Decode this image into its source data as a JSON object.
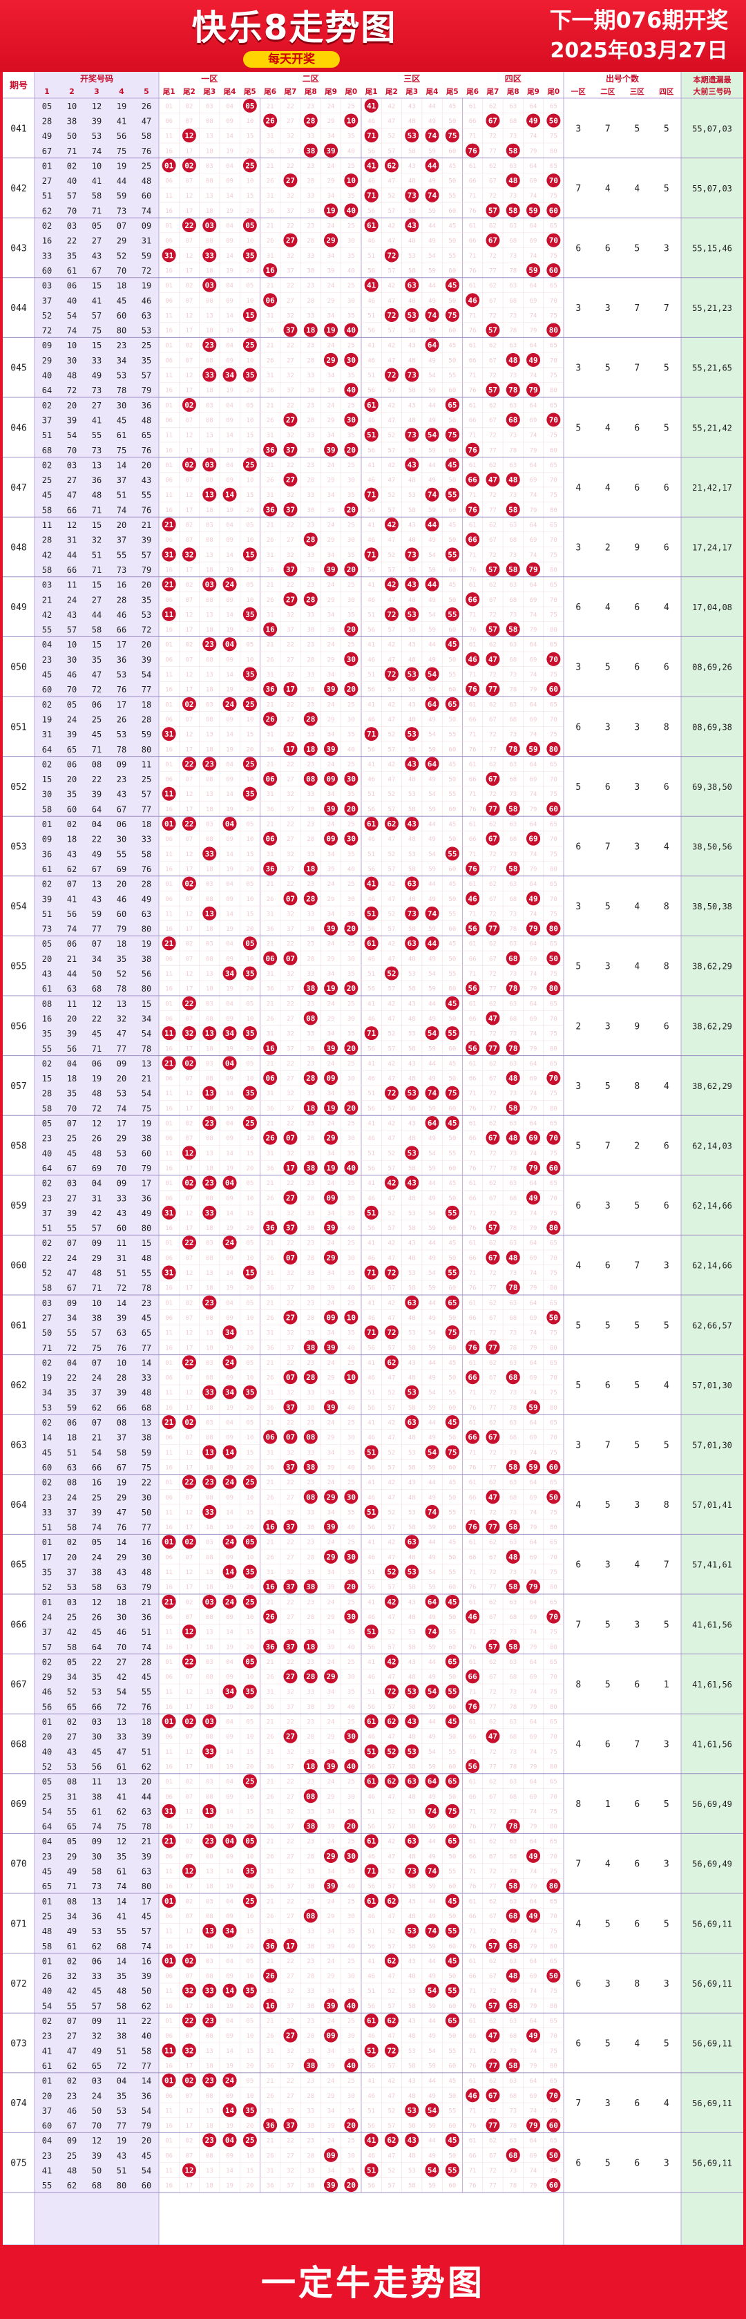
{
  "header": {
    "title": "快乐8走势图",
    "subtitle": "每天开奖",
    "next_issue": "下一期076期开奖",
    "next_date": "2025年03月27日"
  },
  "footer": {
    "brand": "一定牛走势图"
  },
  "colors": {
    "red": "#e8122a",
    "ball": "#c8102e",
    "left_bg": "#ece6fb",
    "right_bg": "#dcf3df"
  },
  "chart_data": {
    "type": "table",
    "columns": {
      "issue": "期号",
      "numbers_group": "开奖号码",
      "number_cols": [
        "1",
        "2",
        "3",
        "4",
        "5"
      ],
      "zones": [
        "一区",
        "二区",
        "三区",
        "四区"
      ],
      "tails": [
        "尾1",
        "尾2",
        "尾3",
        "尾4",
        "尾5",
        "尾6",
        "尾7",
        "尾8",
        "尾9",
        "尾0"
      ],
      "count_group": "出号个数",
      "count_cols": [
        "一区",
        "二区",
        "三区",
        "四区"
      ],
      "last_title_1": "本期遗漏最",
      "last_title_2": "大前三号码"
    },
    "rows": [
      {
        "issue": "041",
        "nums": [
          5,
          10,
          12,
          19,
          26,
          28,
          38,
          39,
          41,
          47,
          49,
          50,
          53,
          56,
          58,
          67,
          71,
          74,
          75,
          76
        ],
        "counts": [
          3,
          7,
          5,
          5
        ],
        "miss": "55,07,03"
      },
      {
        "issue": "042",
        "nums": [
          1,
          2,
          10,
          19,
          25,
          27,
          40,
          41,
          44,
          48,
          51,
          57,
          58,
          59,
          60,
          62,
          70,
          71,
          73,
          74
        ],
        "counts": [
          7,
          4,
          4,
          5
        ],
        "miss": "55,07,03"
      },
      {
        "issue": "043",
        "nums": [
          2,
          3,
          5,
          7,
          9,
          16,
          22,
          27,
          29,
          31,
          33,
          35,
          43,
          52,
          59,
          60,
          61,
          67,
          70,
          72
        ],
        "counts": [
          6,
          6,
          5,
          3
        ],
        "miss": "55,15,46"
      },
      {
        "issue": "044",
        "nums": [
          3,
          6,
          15,
          18,
          19,
          37,
          40,
          41,
          45,
          46,
          52,
          54,
          57,
          60,
          63,
          72,
          74,
          75,
          80,
          53
        ],
        "counts": [
          3,
          3,
          7,
          7
        ],
        "miss": "55,21,23"
      },
      {
        "issue": "045",
        "nums": [
          9,
          10,
          15,
          23,
          25,
          29,
          30,
          33,
          34,
          35,
          40,
          48,
          49,
          53,
          57,
          64,
          72,
          73,
          78,
          79
        ],
        "counts": [
          3,
          5,
          7,
          5
        ],
        "miss": "55,21,65"
      },
      {
        "issue": "046",
        "nums": [
          2,
          20,
          27,
          30,
          36,
          37,
          39,
          41,
          45,
          48,
          51,
          54,
          55,
          61,
          65,
          68,
          70,
          73,
          75,
          76
        ],
        "counts": [
          5,
          4,
          6,
          5
        ],
        "miss": "55,21,42"
      },
      {
        "issue": "047",
        "nums": [
          2,
          3,
          13,
          14,
          20,
          25,
          27,
          36,
          37,
          43,
          45,
          47,
          48,
          51,
          55,
          58,
          66,
          71,
          74,
          76
        ],
        "counts": [
          4,
          4,
          6,
          6
        ],
        "miss": "21,42,17"
      },
      {
        "issue": "048",
        "nums": [
          11,
          12,
          15,
          20,
          21,
          28,
          31,
          32,
          37,
          39,
          42,
          44,
          51,
          55,
          57,
          58,
          66,
          71,
          73,
          79
        ],
        "counts": [
          3,
          2,
          9,
          6
        ],
        "miss": "17,24,17"
      },
      {
        "issue": "049",
        "nums": [
          3,
          11,
          15,
          16,
          20,
          21,
          24,
          27,
          28,
          35,
          42,
          43,
          44,
          46,
          53,
          55,
          57,
          58,
          66,
          72
        ],
        "counts": [
          6,
          4,
          6,
          4
        ],
        "miss": "17,04,08"
      },
      {
        "issue": "050",
        "nums": [
          4,
          10,
          15,
          17,
          20,
          23,
          30,
          35,
          36,
          39,
          45,
          46,
          47,
          53,
          54,
          60,
          70,
          72,
          76,
          77
        ],
        "counts": [
          3,
          5,
          6,
          6
        ],
        "miss": "08,69,26"
      },
      {
        "issue": "051",
        "nums": [
          2,
          5,
          6,
          17,
          18,
          19,
          24,
          25,
          26,
          28,
          31,
          39,
          45,
          53,
          59,
          64,
          65,
          71,
          78,
          80
        ],
        "counts": [
          6,
          3,
          3,
          8
        ],
        "miss": "08,69,38"
      },
      {
        "issue": "052",
        "nums": [
          2,
          6,
          8,
          9,
          11,
          15,
          20,
          22,
          23,
          25,
          30,
          35,
          39,
          43,
          57,
          58,
          60,
          64,
          67,
          77
        ],
        "counts": [
          5,
          6,
          3,
          6
        ],
        "miss": "69,38,50"
      },
      {
        "issue": "053",
        "nums": [
          1,
          2,
          4,
          6,
          18,
          9,
          18,
          22,
          30,
          33,
          36,
          43,
          49,
          55,
          58,
          61,
          62,
          67,
          69,
          76
        ],
        "counts": [
          6,
          7,
          3,
          4
        ],
        "miss": "38,50,56"
      },
      {
        "issue": "054",
        "nums": [
          2,
          7,
          13,
          20,
          28,
          39,
          41,
          43,
          46,
          49,
          51,
          56,
          59,
          60,
          63,
          73,
          74,
          77,
          79,
          80
        ],
        "counts": [
          3,
          5,
          4,
          8
        ],
        "miss": "38,50,38"
      },
      {
        "issue": "055",
        "nums": [
          5,
          6,
          7,
          18,
          19,
          20,
          21,
          34,
          35,
          38,
          43,
          44,
          50,
          52,
          56,
          61,
          63,
          68,
          78,
          80
        ],
        "counts": [
          5,
          3,
          4,
          8
        ],
        "miss": "38,62,29"
      },
      {
        "issue": "056",
        "nums": [
          8,
          11,
          12,
          13,
          15,
          16,
          20,
          22,
          32,
          34,
          35,
          39,
          45,
          47,
          54,
          55,
          56,
          71,
          77,
          78
        ],
        "counts": [
          2,
          3,
          9,
          6
        ],
        "miss": "38,62,29"
      },
      {
        "issue": "057",
        "nums": [
          2,
          4,
          6,
          9,
          13,
          15,
          18,
          19,
          20,
          21,
          28,
          35,
          48,
          53,
          54,
          58,
          70,
          72,
          74,
          75
        ],
        "counts": [
          3,
          5,
          8,
          4
        ],
        "miss": "38,62,29"
      },
      {
        "issue": "058",
        "nums": [
          5,
          7,
          12,
          17,
          19,
          23,
          25,
          26,
          29,
          38,
          40,
          45,
          48,
          53,
          60,
          64,
          67,
          69,
          70,
          79
        ],
        "counts": [
          5,
          7,
          2,
          6
        ],
        "miss": "62,14,03"
      },
      {
        "issue": "059",
        "nums": [
          2,
          3,
          4,
          9,
          17,
          23,
          27,
          31,
          33,
          36,
          37,
          39,
          42,
          43,
          49,
          51,
          55,
          57,
          60,
          80
        ],
        "counts": [
          6,
          3,
          5,
          6
        ],
        "miss": "62,14,66"
      },
      {
        "issue": "060",
        "nums": [
          2,
          7,
          9,
          11,
          15,
          22,
          24,
          29,
          31,
          48,
          52,
          47,
          48,
          51,
          55,
          58,
          67,
          71,
          72,
          78
        ],
        "counts": [
          4,
          6,
          7,
          3
        ],
        "miss": "62,14,66"
      },
      {
        "issue": "061",
        "nums": [
          3,
          9,
          10,
          14,
          23,
          27,
          34,
          38,
          39,
          45,
          50,
          55,
          57,
          63,
          65,
          71,
          72,
          75,
          76,
          77
        ],
        "counts": [
          5,
          5,
          5,
          5
        ],
        "miss": "62,66,57"
      },
      {
        "issue": "062",
        "nums": [
          2,
          4,
          7,
          10,
          14,
          19,
          22,
          24,
          28,
          33,
          34,
          35,
          37,
          39,
          48,
          53,
          59,
          62,
          66,
          68
        ],
        "counts": [
          5,
          6,
          5,
          4
        ],
        "miss": "57,01,30"
      },
      {
        "issue": "063",
        "nums": [
          2,
          6,
          7,
          8,
          13,
          14,
          18,
          21,
          37,
          38,
          45,
          51,
          54,
          58,
          59,
          60,
          63,
          66,
          67,
          75
        ],
        "counts": [
          3,
          7,
          5,
          5
        ],
        "miss": "57,01,30"
      },
      {
        "issue": "064",
        "nums": [
          2,
          8,
          16,
          19,
          22,
          23,
          24,
          25,
          29,
          30,
          33,
          37,
          39,
          47,
          50,
          51,
          58,
          74,
          76,
          77
        ],
        "counts": [
          4,
          5,
          3,
          8
        ],
        "miss": "57,01,41"
      },
      {
        "issue": "065",
        "nums": [
          1,
          2,
          5,
          14,
          16,
          17,
          20,
          24,
          29,
          30,
          35,
          37,
          38,
          43,
          48,
          52,
          53,
          58,
          63,
          79
        ],
        "counts": [
          6,
          3,
          4,
          7
        ],
        "miss": "57,41,61"
      },
      {
        "issue": "066",
        "nums": [
          1,
          3,
          12,
          18,
          21,
          24,
          25,
          26,
          30,
          36,
          37,
          42,
          45,
          46,
          51,
          57,
          58,
          64,
          70,
          74
        ],
        "counts": [
          7,
          5,
          3,
          5
        ],
        "miss": "41,61,56"
      },
      {
        "issue": "067",
        "nums": [
          2,
          5,
          22,
          27,
          28,
          29,
          34,
          35,
          42,
          45,
          46,
          52,
          53,
          54,
          55,
          56,
          65,
          66,
          72,
          76
        ],
        "counts": [
          8,
          5,
          6,
          1
        ],
        "miss": "41,61,56"
      },
      {
        "issue": "068",
        "nums": [
          1,
          2,
          3,
          13,
          18,
          20,
          27,
          30,
          33,
          39,
          40,
          43,
          45,
          47,
          51,
          52,
          53,
          56,
          61,
          62
        ],
        "counts": [
          4,
          6,
          7,
          3
        ],
        "miss": "41,61,56"
      },
      {
        "issue": "069",
        "nums": [
          5,
          8,
          11,
          13,
          20,
          25,
          31,
          38,
          41,
          44,
          54,
          55,
          61,
          62,
          63,
          64,
          65,
          74,
          75,
          78
        ],
        "counts": [
          8,
          1,
          6,
          5
        ],
        "miss": "56,69,49"
      },
      {
        "issue": "070",
        "nums": [
          4,
          5,
          9,
          12,
          21,
          23,
          29,
          30,
          35,
          39,
          45,
          49,
          58,
          61,
          63,
          65,
          71,
          73,
          74,
          80
        ],
        "counts": [
          7,
          4,
          6,
          3
        ],
        "miss": "56,69,49"
      },
      {
        "issue": "071",
        "nums": [
          1,
          8,
          13,
          14,
          17,
          25,
          34,
          36,
          41,
          45,
          48,
          49,
          53,
          55,
          57,
          58,
          61,
          62,
          68,
          74
        ],
        "counts": [
          4,
          5,
          6,
          5
        ],
        "miss": "56,69,11"
      },
      {
        "issue": "072",
        "nums": [
          1,
          2,
          6,
          14,
          16,
          26,
          32,
          33,
          35,
          39,
          40,
          42,
          45,
          48,
          50,
          54,
          55,
          57,
          58,
          62
        ],
        "counts": [
          6,
          3,
          8,
          3
        ],
        "miss": "56,69,11"
      },
      {
        "issue": "073",
        "nums": [
          2,
          7,
          9,
          11,
          22,
          23,
          27,
          32,
          38,
          40,
          41,
          47,
          49,
          51,
          58,
          61,
          62,
          65,
          72,
          77
        ],
        "counts": [
          6,
          5,
          4,
          5
        ],
        "miss": "56,69,11"
      },
      {
        "issue": "074",
        "nums": [
          1,
          2,
          3,
          4,
          14,
          20,
          23,
          24,
          35,
          36,
          37,
          46,
          50,
          53,
          54,
          60,
          67,
          70,
          77,
          79
        ],
        "counts": [
          7,
          3,
          6,
          4
        ],
        "miss": "56,69,11"
      },
      {
        "issue": "075",
        "nums": [
          4,
          9,
          12,
          19,
          20,
          23,
          25,
          39,
          43,
          45,
          41,
          48,
          50,
          51,
          54,
          55,
          62,
          68,
          80,
          60
        ],
        "counts": [
          6,
          5,
          6,
          3
        ],
        "miss": "56,69,11"
      }
    ]
  }
}
